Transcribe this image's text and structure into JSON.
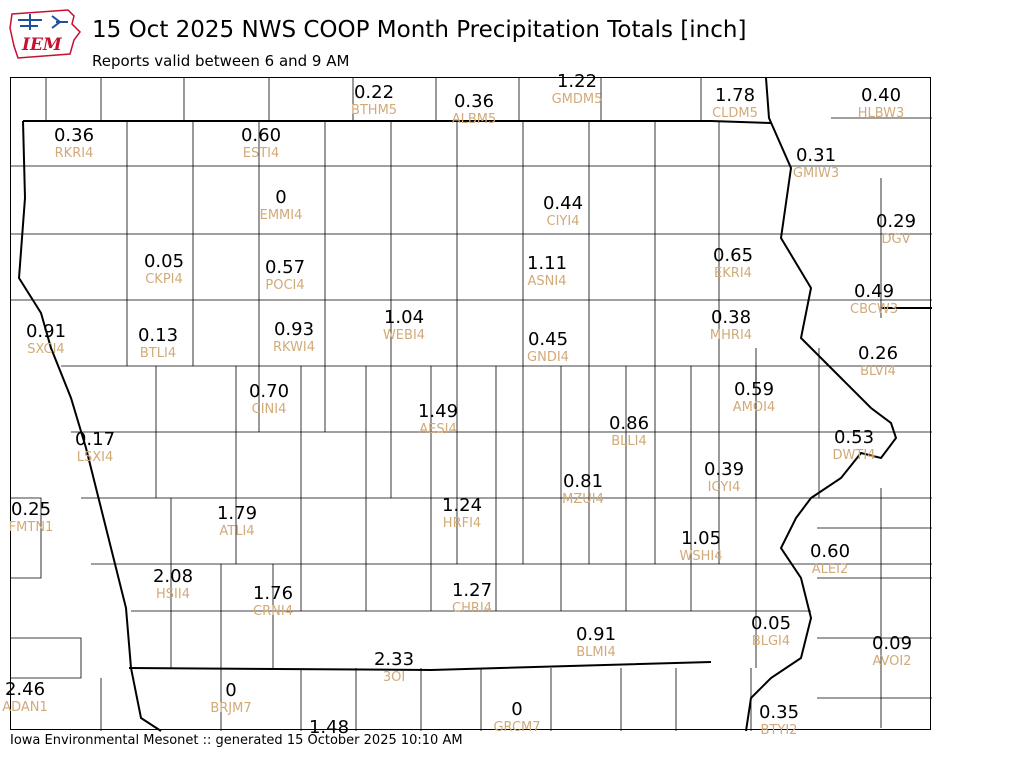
{
  "header": {
    "logo_text": "IEM",
    "title": "15 Oct 2025 NWS COOP Month Precipitation Totals [inch]",
    "subtitle": "Reports valid between 6 and 9 AM"
  },
  "footer": {
    "text": "Iowa Environmental Mesonet :: generated 15 October 2025 10:10 AM"
  },
  "colors": {
    "value": "#000000",
    "station_id": "#d2aa78",
    "border": "#000000",
    "logo_accent": "#c8102e"
  },
  "stations": [
    {
      "id": "BTHM5",
      "value": "0.22"
    },
    {
      "id": "ALBM5",
      "value": "0.36"
    },
    {
      "id": "GMDM5",
      "value": "1.22"
    },
    {
      "id": "CLDM5",
      "value": "1.78"
    },
    {
      "id": "HLBW3",
      "value": "0.40"
    },
    {
      "id": "RKRI4",
      "value": "0.36"
    },
    {
      "id": "ESTI4",
      "value": "0.60"
    },
    {
      "id": "GMIW3",
      "value": "0.31"
    },
    {
      "id": "EMMI4",
      "value": "0"
    },
    {
      "id": "CIYI4",
      "value": "0.44"
    },
    {
      "id": "DGV",
      "value": "0.29"
    },
    {
      "id": "CKPI4",
      "value": "0.05"
    },
    {
      "id": "POCI4",
      "value": "0.57"
    },
    {
      "id": "ASNI4",
      "value": "1.11"
    },
    {
      "id": "EKRI4",
      "value": "0.65"
    },
    {
      "id": "CBCW3",
      "value": "0.49"
    },
    {
      "id": "SXCI4",
      "value": "0.91"
    },
    {
      "id": "BTLI4",
      "value": "0.13"
    },
    {
      "id": "RKWI4",
      "value": "0.93"
    },
    {
      "id": "WEBI4",
      "value": "1.04"
    },
    {
      "id": "GNDI4",
      "value": "0.45"
    },
    {
      "id": "MHRI4",
      "value": "0.38"
    },
    {
      "id": "BLVI4",
      "value": "0.26"
    },
    {
      "id": "CINI4",
      "value": "0.70"
    },
    {
      "id": "AMOI4",
      "value": "0.59"
    },
    {
      "id": "AESI4",
      "value": "1.49"
    },
    {
      "id": "BLLI4",
      "value": "0.86"
    },
    {
      "id": "LSXI4",
      "value": "0.17"
    },
    {
      "id": "DWTI4",
      "value": "0.53"
    },
    {
      "id": "ICYI4",
      "value": "0.39"
    },
    {
      "id": "MZUI4",
      "value": "0.81"
    },
    {
      "id": "HRFI4",
      "value": "1.24"
    },
    {
      "id": "FMTN1",
      "value": "0.25"
    },
    {
      "id": "ATLI4",
      "value": "1.79"
    },
    {
      "id": "WSHI4",
      "value": "1.05"
    },
    {
      "id": "ALEI2",
      "value": "0.60"
    },
    {
      "id": "HSII4",
      "value": "2.08"
    },
    {
      "id": "CRNI4",
      "value": "1.76"
    },
    {
      "id": "CHRI4",
      "value": "1.27"
    },
    {
      "id": "BLMI4",
      "value": "0.91"
    },
    {
      "id": "BLGI4",
      "value": "0.05"
    },
    {
      "id": "AVOI2",
      "value": "0.09"
    },
    {
      "id": "3OI",
      "value": "2.33"
    },
    {
      "id": "ADAN1",
      "value": "2.46"
    },
    {
      "id": "BRJM7",
      "value": "0"
    },
    {
      "id": "GRCM7",
      "value": "0"
    },
    {
      "id": "BTYI2",
      "value": "0.35"
    },
    {
      "id": "",
      "value": "1.48"
    }
  ]
}
